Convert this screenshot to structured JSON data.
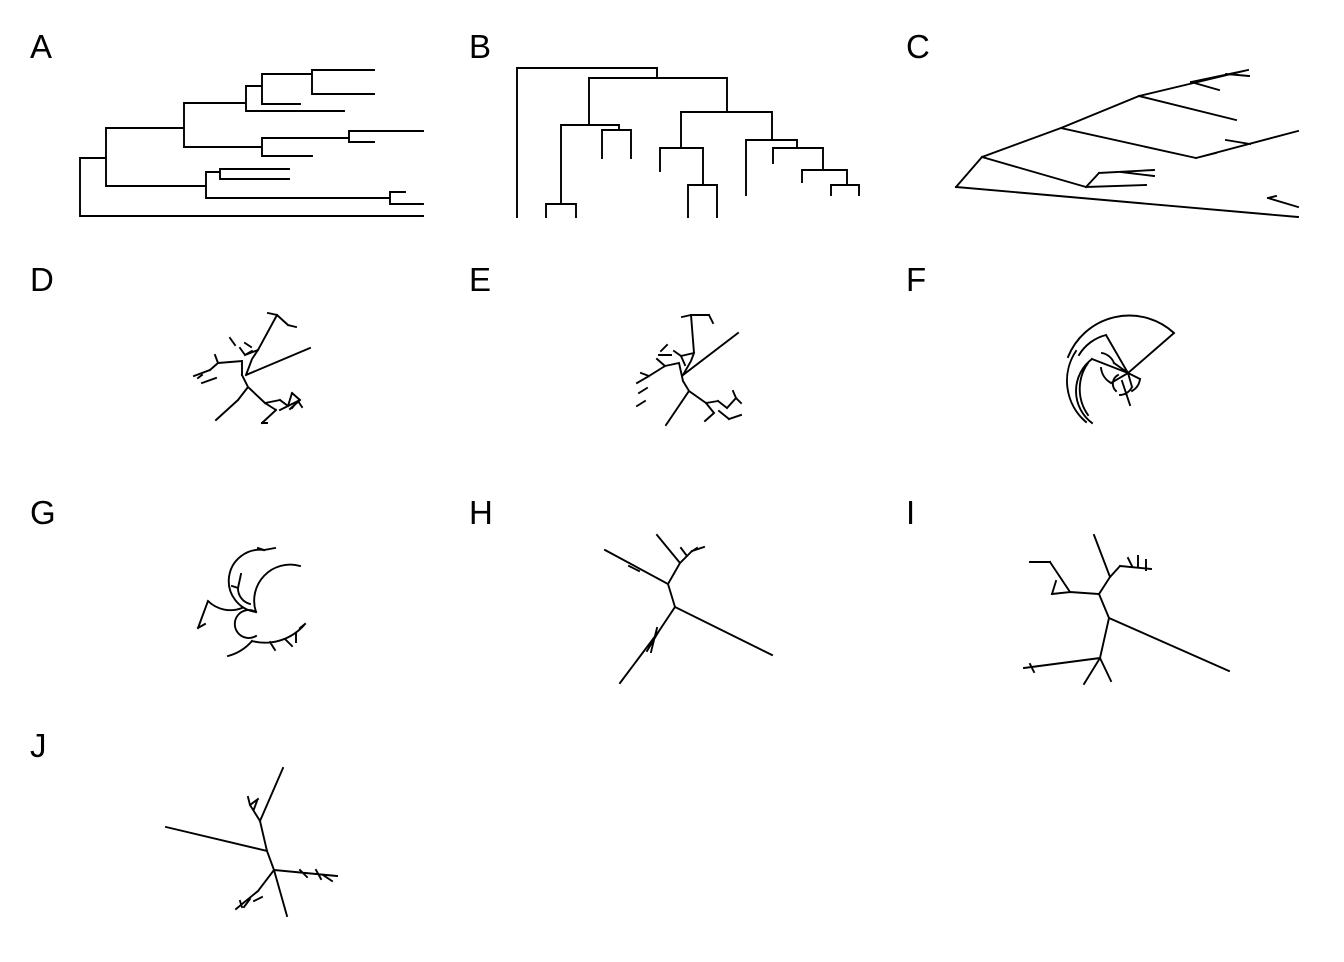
{
  "panels": [
    {
      "label": "A",
      "layout": "rectangular"
    },
    {
      "label": "B",
      "layout": "cladogram"
    },
    {
      "label": "C",
      "layout": "slanted"
    },
    {
      "label": "D",
      "layout": "fan"
    },
    {
      "label": "E",
      "layout": "fan"
    },
    {
      "label": "F",
      "layout": "circular"
    },
    {
      "label": "G",
      "layout": "radial-arc"
    },
    {
      "label": "H",
      "layout": "unrooted"
    },
    {
      "label": "I",
      "layout": "unrooted"
    },
    {
      "label": "J",
      "layout": "unrooted"
    }
  ],
  "colors": {
    "line": "#000000",
    "background": "#ffffff"
  }
}
